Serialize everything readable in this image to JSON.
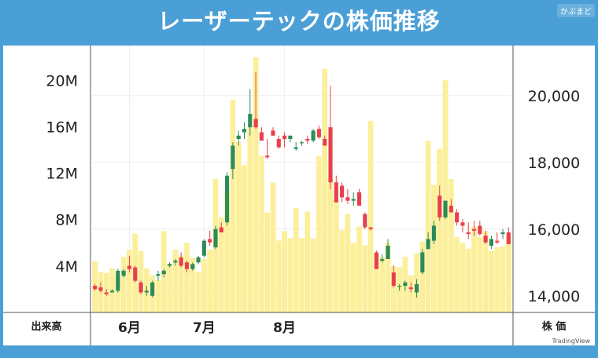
{
  "header": {
    "title": "レーザーテックの株価推移",
    "brand": "かぶまど"
  },
  "footer": {
    "volume_label": "出来高",
    "price_label": "株 価",
    "tradingview": "TradingView"
  },
  "colors": {
    "background": "#4a9fd6",
    "up": "#2e8b57",
    "down": "#e8404a",
    "volume": "#fbef9a"
  },
  "chart_data": {
    "type": "candlestick",
    "x_tick_labels": [
      "6月",
      "7月",
      "8月"
    ],
    "left_axis": {
      "label": "出来高",
      "ticks": [
        "4M",
        "8M",
        "12M",
        "16M",
        "20M"
      ],
      "ylim": [
        0,
        23000000
      ]
    },
    "right_axis": {
      "label": "株 価",
      "ticks": [
        "14,000",
        "16,000",
        "18,000",
        "20,000"
      ],
      "ylim": [
        13500,
        21500
      ]
    },
    "months_start_index": {
      "6月": 6,
      "7月": 19,
      "8月": 33
    },
    "volume": [
      4.4,
      3.5,
      3.4,
      3.8,
      3.1,
      4.8,
      5.4,
      6.8,
      5.3,
      3.8,
      3.2,
      2.8,
      7.0,
      4.2,
      5.4,
      4.9,
      6.0,
      4.7,
      3.5,
      4.6,
      5.4,
      11.5,
      8.2,
      10.4,
      18.3,
      14.7,
      12.7,
      16.0,
      22.0,
      13.5,
      8.6,
      11.2,
      6.2,
      7.0,
      6.4,
      9.0,
      6.4,
      8.7,
      6.4,
      13.5,
      21.0,
      11.6,
      9.8,
      7.1,
      8.5,
      6.0,
      7.4,
      5.8,
      16.5,
      5.0,
      4.8,
      6.0,
      4.0,
      3.9,
      4.8,
      3.2,
      5.1,
      6.1,
      14.8,
      11.0,
      14.1,
      20.0,
      11.5,
      6.5,
      6.0,
      5.5,
      7.4,
      6.5,
      7.0,
      5.3,
      5.6,
      5.7,
      6.5
    ],
    "ohlc": [
      [
        14300,
        14350,
        14150,
        14200
      ],
      [
        14250,
        14400,
        14100,
        14150
      ],
      [
        14100,
        14200,
        14000,
        14050
      ],
      [
        14100,
        14200,
        14100,
        14150
      ],
      [
        14150,
        14800,
        14100,
        14750
      ],
      [
        14600,
        14800,
        14550,
        14750
      ],
      [
        14900,
        15200,
        14700,
        14800
      ],
      [
        14850,
        14900,
        14400,
        14450
      ],
      [
        14400,
        14450,
        14050,
        14100
      ],
      [
        14100,
        14300,
        14000,
        14150
      ],
      [
        14000,
        14450,
        13950,
        14400
      ],
      [
        14600,
        14750,
        14450,
        14650
      ],
      [
        14650,
        14800,
        14550,
        14750
      ],
      [
        14900,
        15000,
        14850,
        14950
      ],
      [
        15000,
        15100,
        14900,
        15050
      ],
      [
        15150,
        15300,
        14850,
        14900
      ],
      [
        15000,
        15050,
        14700,
        14800
      ],
      [
        14800,
        15000,
        14750,
        14950
      ],
      [
        15000,
        15200,
        14950,
        15150
      ],
      [
        15200,
        15700,
        15150,
        15650
      ],
      [
        15700,
        15950,
        15500,
        15600
      ],
      [
        15450,
        16100,
        15400,
        16000
      ],
      [
        16050,
        16200,
        15900,
        15900
      ],
      [
        16200,
        17700,
        16100,
        17600
      ],
      [
        17800,
        18600,
        17500,
        18500
      ],
      [
        18700,
        18950,
        18500,
        18800
      ],
      [
        18900,
        19200,
        18700,
        19000
      ],
      [
        19050,
        20200,
        18800,
        19450
      ],
      [
        19300,
        20700,
        19000,
        19050
      ],
      [
        18900,
        19050,
        18700,
        18650
      ],
      [
        18200,
        18700,
        18100,
        18150
      ],
      [
        18950,
        19050,
        18800,
        18800
      ],
      [
        18700,
        18800,
        18400,
        18450
      ],
      [
        18800,
        18900,
        18450,
        18700
      ],
      [
        18700,
        18800,
        18600,
        18800
      ],
      [
        18400,
        18600,
        18350,
        18450
      ],
      [
        18600,
        18650,
        18500,
        18600
      ],
      [
        18700,
        18800,
        18550,
        18650
      ],
      [
        18650,
        19000,
        18600,
        18950
      ],
      [
        19000,
        19100,
        18700,
        18750
      ],
      [
        18700,
        18800,
        18500,
        18500
      ],
      [
        19050,
        20300,
        17200,
        17400
      ],
      [
        17400,
        17600,
        16800,
        16800
      ],
      [
        17300,
        17400,
        16800,
        16950
      ],
      [
        16950,
        17200,
        16750,
        16850
      ],
      [
        16850,
        17100,
        16700,
        16900
      ],
      [
        17100,
        17200,
        16700,
        16700
      ],
      [
        16450,
        16500,
        16000,
        16050
      ],
      [
        16050,
        16050,
        15950,
        16000
      ],
      [
        15300,
        15350,
        14950,
        14800
      ],
      [
        15050,
        15250,
        15000,
        15100
      ],
      [
        15100,
        15700,
        15200,
        15500
      ],
      [
        14700,
        14900,
        14250,
        14300
      ],
      [
        14300,
        14350,
        14150,
        14300
      ],
      [
        14300,
        14450,
        14150,
        14400
      ],
      [
        14250,
        14400,
        14100,
        14200
      ],
      [
        14100,
        14500,
        13950,
        14350
      ],
      [
        14700,
        15400,
        14650,
        15300
      ],
      [
        15400,
        15900,
        15400,
        15700
      ],
      [
        15650,
        16250,
        15550,
        16100
      ],
      [
        17000,
        17300,
        16250,
        16350
      ],
      [
        16350,
        16800,
        16300,
        16850
      ],
      [
        16700,
        16900,
        16550,
        16500
      ],
      [
        16500,
        16600,
        16100,
        16200
      ],
      [
        16200,
        16300,
        15900,
        16100
      ],
      [
        15900,
        16200,
        15700,
        15850
      ],
      [
        16000,
        16250,
        15800,
        15950
      ],
      [
        16100,
        16250,
        15800,
        15850
      ],
      [
        15800,
        15950,
        15550,
        15600
      ],
      [
        15500,
        15800,
        15400,
        15700
      ],
      [
        15650,
        15900,
        15550,
        15600
      ],
      [
        15850,
        16000,
        15700,
        15900
      ],
      [
        15900,
        16050,
        15700,
        15550
      ]
    ]
  }
}
